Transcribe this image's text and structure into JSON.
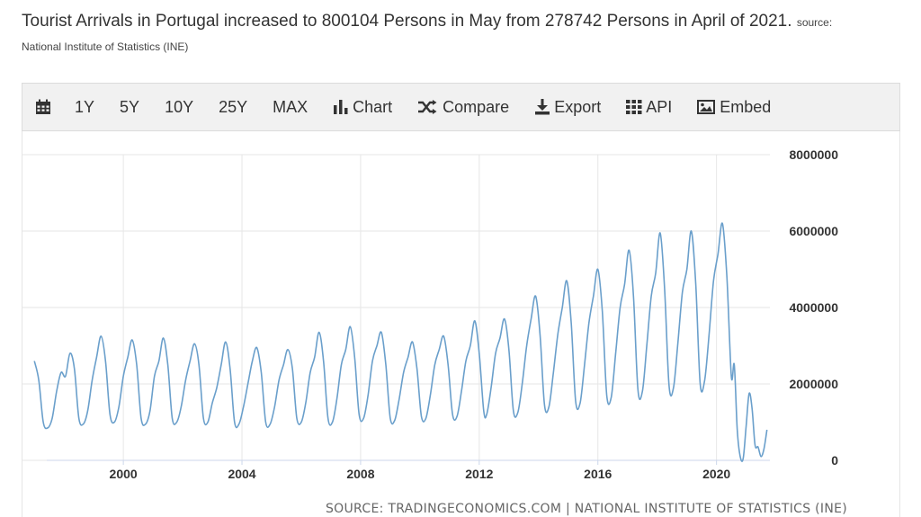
{
  "header": {
    "title": "Tourist Arrivals in Portugal increased to 800104 Persons in May from 278742 Persons in April of 2021.",
    "source_label": "source:",
    "source_name": "National Institute of Statistics (INE)"
  },
  "toolbar": {
    "calendar_icon": "calendar-icon",
    "ranges": [
      "1Y",
      "5Y",
      "10Y",
      "25Y",
      "MAX"
    ],
    "chart_label": "Chart",
    "compare_label": "Compare",
    "export_label": "Export",
    "api_label": "API",
    "embed_label": "Embed"
  },
  "footer": {
    "source": "SOURCE: TRADINGECONOMICS.COM | NATIONAL INSTITUTE OF STATISTICS (INE)"
  },
  "colors": {
    "line": "#6a9fcb",
    "grid": "#e6e6e6"
  },
  "chart_data": {
    "type": "line",
    "x_ticks": [
      "2000",
      "2004",
      "2008",
      "2012",
      "2016",
      "2020"
    ],
    "y_ticks": [
      "0",
      "2000000",
      "4000000",
      "6000000",
      "8000000"
    ],
    "ylim": [
      0,
      8000000
    ],
    "xlim": [
      1996.6,
      2021.8
    ],
    "series": [
      {
        "values": [
          [
            1997.0,
            2600000
          ],
          [
            1997.15,
            2100000
          ],
          [
            1997.3,
            1000000
          ],
          [
            1997.45,
            850000
          ],
          [
            1997.6,
            1100000
          ],
          [
            1997.75,
            1800000
          ],
          [
            1997.9,
            2300000
          ],
          [
            1998.05,
            2200000
          ],
          [
            1998.2,
            2800000
          ],
          [
            1998.35,
            2400000
          ],
          [
            1998.5,
            1100000
          ],
          [
            1998.65,
            950000
          ],
          [
            1998.8,
            1300000
          ],
          [
            1998.95,
            2100000
          ],
          [
            1999.1,
            2700000
          ],
          [
            1999.25,
            3250000
          ],
          [
            1999.4,
            2600000
          ],
          [
            1999.55,
            1200000
          ],
          [
            1999.7,
            1000000
          ],
          [
            1999.85,
            1400000
          ],
          [
            2000.0,
            2200000
          ],
          [
            2000.15,
            2700000
          ],
          [
            2000.3,
            3150000
          ],
          [
            2000.45,
            2500000
          ],
          [
            2000.6,
            1100000
          ],
          [
            2000.75,
            950000
          ],
          [
            2000.9,
            1300000
          ],
          [
            2001.05,
            2200000
          ],
          [
            2001.2,
            2600000
          ],
          [
            2001.35,
            3200000
          ],
          [
            2001.5,
            2500000
          ],
          [
            2001.65,
            1100000
          ],
          [
            2001.8,
            1000000
          ],
          [
            2001.95,
            1400000
          ],
          [
            2002.1,
            2100000
          ],
          [
            2002.25,
            2600000
          ],
          [
            2002.4,
            3050000
          ],
          [
            2002.55,
            2500000
          ],
          [
            2002.7,
            1100000
          ],
          [
            2002.85,
            1000000
          ],
          [
            2003.0,
            1500000
          ],
          [
            2003.15,
            1900000
          ],
          [
            2003.3,
            2500000
          ],
          [
            2003.45,
            3100000
          ],
          [
            2003.6,
            2400000
          ],
          [
            2003.75,
            1000000
          ],
          [
            2003.9,
            950000
          ],
          [
            2004.05,
            1400000
          ],
          [
            2004.2,
            2000000
          ],
          [
            2004.35,
            2600000
          ],
          [
            2004.5,
            2950000
          ],
          [
            2004.65,
            2300000
          ],
          [
            2004.8,
            1000000
          ],
          [
            2004.95,
            950000
          ],
          [
            2005.1,
            1400000
          ],
          [
            2005.25,
            2100000
          ],
          [
            2005.4,
            2500000
          ],
          [
            2005.55,
            2900000
          ],
          [
            2005.7,
            2400000
          ],
          [
            2005.85,
            1100000
          ],
          [
            2006.0,
            1000000
          ],
          [
            2006.15,
            1500000
          ],
          [
            2006.3,
            2300000
          ],
          [
            2006.45,
            2700000
          ],
          [
            2006.6,
            3350000
          ],
          [
            2006.75,
            2600000
          ],
          [
            2006.9,
            1100000
          ],
          [
            2007.05,
            1000000
          ],
          [
            2007.2,
            1600000
          ],
          [
            2007.35,
            2500000
          ],
          [
            2007.5,
            2900000
          ],
          [
            2007.65,
            3500000
          ],
          [
            2007.8,
            2700000
          ],
          [
            2007.95,
            1200000
          ],
          [
            2008.1,
            1100000
          ],
          [
            2008.25,
            1700000
          ],
          [
            2008.4,
            2600000
          ],
          [
            2008.55,
            3000000
          ],
          [
            2008.7,
            3350000
          ],
          [
            2008.85,
            2500000
          ],
          [
            2009.0,
            1100000
          ],
          [
            2009.15,
            1050000
          ],
          [
            2009.3,
            1600000
          ],
          [
            2009.45,
            2300000
          ],
          [
            2009.6,
            2700000
          ],
          [
            2009.75,
            3100000
          ],
          [
            2009.9,
            2400000
          ],
          [
            2010.05,
            1150000
          ],
          [
            2010.2,
            1100000
          ],
          [
            2010.35,
            1700000
          ],
          [
            2010.5,
            2500000
          ],
          [
            2010.65,
            2900000
          ],
          [
            2010.8,
            3250000
          ],
          [
            2010.95,
            2500000
          ],
          [
            2011.1,
            1200000
          ],
          [
            2011.25,
            1150000
          ],
          [
            2011.4,
            1800000
          ],
          [
            2011.55,
            2600000
          ],
          [
            2011.7,
            3000000
          ],
          [
            2011.85,
            3650000
          ],
          [
            2012.0,
            2800000
          ],
          [
            2012.15,
            1300000
          ],
          [
            2012.25,
            1200000
          ],
          [
            2012.4,
            1900000
          ],
          [
            2012.55,
            2800000
          ],
          [
            2012.7,
            3200000
          ],
          [
            2012.85,
            3700000
          ],
          [
            2013.0,
            2900000
          ],
          [
            2013.15,
            1300000
          ],
          [
            2013.3,
            1250000
          ],
          [
            2013.45,
            2000000
          ],
          [
            2013.6,
            3000000
          ],
          [
            2013.75,
            3700000
          ],
          [
            2013.9,
            4300000
          ],
          [
            2014.05,
            3300000
          ],
          [
            2014.2,
            1450000
          ],
          [
            2014.35,
            1400000
          ],
          [
            2014.5,
            2300000
          ],
          [
            2014.65,
            3300000
          ],
          [
            2014.8,
            4000000
          ],
          [
            2014.95,
            4700000
          ],
          [
            2015.1,
            3600000
          ],
          [
            2015.25,
            1550000
          ],
          [
            2015.4,
            1500000
          ],
          [
            2015.55,
            2500000
          ],
          [
            2015.7,
            3600000
          ],
          [
            2015.85,
            4300000
          ],
          [
            2016.0,
            5000000
          ],
          [
            2016.15,
            3900000
          ],
          [
            2016.3,
            1700000
          ],
          [
            2016.45,
            1650000
          ],
          [
            2016.6,
            2800000
          ],
          [
            2016.75,
            4000000
          ],
          [
            2016.9,
            4600000
          ],
          [
            2017.05,
            5500000
          ],
          [
            2017.2,
            4300000
          ],
          [
            2017.35,
            1850000
          ],
          [
            2017.5,
            1800000
          ],
          [
            2017.65,
            3000000
          ],
          [
            2017.8,
            4300000
          ],
          [
            2017.95,
            4900000
          ],
          [
            2018.1,
            5950000
          ],
          [
            2018.25,
            4500000
          ],
          [
            2018.4,
            1950000
          ],
          [
            2018.55,
            1900000
          ],
          [
            2018.7,
            3100000
          ],
          [
            2018.85,
            4400000
          ],
          [
            2019.0,
            5000000
          ],
          [
            2019.15,
            6000000
          ],
          [
            2019.3,
            4600000
          ],
          [
            2019.45,
            2000000
          ],
          [
            2019.6,
            2100000
          ],
          [
            2019.75,
            3300000
          ],
          [
            2019.9,
            4700000
          ],
          [
            2020.05,
            5400000
          ],
          [
            2020.2,
            6200000
          ],
          [
            2020.35,
            4800000
          ],
          [
            2020.5,
            2200000
          ],
          [
            2020.6,
            2500000
          ],
          [
            2020.7,
            800000
          ],
          [
            2020.8,
            100000
          ],
          [
            2020.9,
            50000
          ],
          [
            2021.0,
            900000
          ],
          [
            2021.1,
            1750000
          ],
          [
            2021.2,
            1350000
          ],
          [
            2021.3,
            400000
          ],
          [
            2021.4,
            350000
          ],
          [
            2021.5,
            100000
          ],
          [
            2021.6,
            300000
          ],
          [
            2021.7,
            800000
          ]
        ]
      }
    ]
  }
}
